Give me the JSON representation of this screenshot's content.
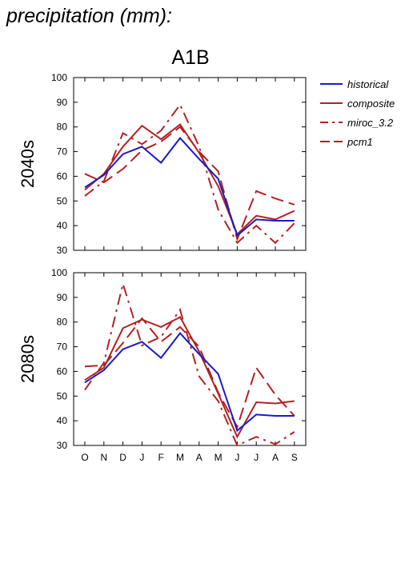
{
  "page": {
    "title": "precipitation (mm):"
  },
  "chart_data": {
    "type": "line",
    "title": "A1B",
    "months": [
      "O",
      "N",
      "D",
      "J",
      "F",
      "M",
      "A",
      "M",
      "J",
      "J",
      "A",
      "S"
    ],
    "ylim": [
      30,
      100
    ],
    "yticks": [
      30,
      40,
      50,
      60,
      70,
      80,
      90,
      100
    ],
    "grid": false,
    "legend_position": "right",
    "legend": [
      {
        "name": "historical",
        "color": "#1a1acc",
        "dash": "solid"
      },
      {
        "name": "composite",
        "color": "#b22222",
        "dash": "solid"
      },
      {
        "name": "miroc_3.2",
        "color": "#b22222",
        "dash": "dashdot"
      },
      {
        "name": "pcm1",
        "color": "#b22222",
        "dash": "dashed"
      }
    ],
    "panels": [
      {
        "label": "2040s",
        "series": [
          {
            "name": "historical",
            "values": [
              55.5,
              60.5,
              69,
              72,
              65.5,
              75.5,
              67,
              59,
              36,
              42.5,
              42,
              42
            ]
          },
          {
            "name": "composite",
            "values": [
              54.5,
              61,
              72,
              80.5,
              75,
              81,
              69.5,
              56,
              36.5,
              44,
              42.5,
              46
            ]
          },
          {
            "name": "miroc_3.2",
            "values": [
              52,
              58,
              77.5,
              73,
              78.5,
              89,
              72,
              46.5,
              33,
              40,
              33,
              41
            ]
          },
          {
            "name": "pcm1",
            "values": [
              61,
              57.5,
              63,
              70.5,
              74,
              80,
              70,
              62,
              34.5,
              54,
              51,
              48.5
            ]
          }
        ]
      },
      {
        "label": "2080s",
        "series": [
          {
            "name": "historical",
            "values": [
              55.5,
              60.5,
              69,
              72,
              65.5,
              75.5,
              67,
              59,
              36,
              42.5,
              42,
              42
            ]
          },
          {
            "name": "composite",
            "values": [
              56.5,
              61.5,
              77.5,
              81,
              78,
              82,
              68,
              51,
              33.5,
              47.5,
              47,
              48
            ]
          },
          {
            "name": "miroc_3.2",
            "values": [
              52.5,
              63.5,
              95.5,
              70.5,
              74,
              85,
              58,
              48,
              30,
              33.5,
              30.5,
              35.5
            ]
          },
          {
            "name": "pcm1",
            "values": [
              62,
              62.5,
              71.5,
              81.5,
              72,
              78,
              70,
              51.5,
              37.5,
              61.5,
              50.5,
              42
            ]
          }
        ]
      }
    ]
  }
}
